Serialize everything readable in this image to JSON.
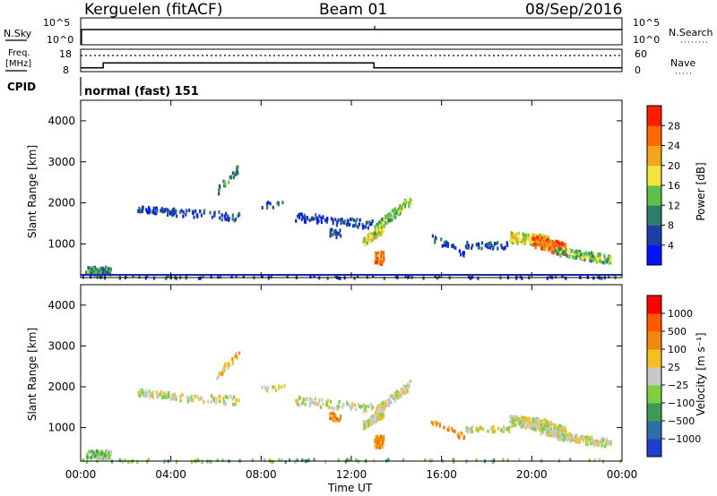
{
  "header": {
    "site": "Kerguelen (fitACF)",
    "beam": "Beam 01",
    "date": "08/Sep/2016"
  },
  "aux_panels": {
    "nsky": {
      "label": "N.Sky",
      "ticks_left": [
        "10^5",
        "10^0"
      ],
      "ticks_right": [
        "10^5",
        "10^0"
      ],
      "right_label": "N.Search"
    },
    "freq": {
      "label_line1": "Freq.",
      "label_line2": "[MHz]",
      "ticks_left": [
        "18",
        "8"
      ],
      "ticks_right": [
        "60",
        "0"
      ],
      "right_label": "Nave",
      "freq_series": [
        {
          "t0": 0.0,
          "t1": 1.0,
          "mhz": 9.7
        },
        {
          "t0": 1.0,
          "t1": 13.0,
          "mhz": 11.9
        },
        {
          "t0": 13.0,
          "t1": 24.0,
          "mhz": 9.7
        }
      ],
      "nave_level": 0.72
    },
    "cpid": {
      "label": "CPID",
      "text": "normal (fast) 151"
    }
  },
  "chart_data": [
    {
      "type": "heatmap",
      "name": "power",
      "ylabel": "Slant Range [km]",
      "yticks": [
        "1000",
        "2000",
        "3000",
        "4000"
      ],
      "ylim": [
        180,
        4500
      ],
      "xlim": [
        0,
        24
      ],
      "colorbar": {
        "label": "Power [dB]",
        "ticks": [
          "4",
          "8",
          "12",
          "16",
          "20",
          "24",
          "28"
        ],
        "colors": [
          "#0014ff",
          "#1e3fa8",
          "#2e7d6b",
          "#5fbf49",
          "#f2e63a",
          "#f4a51e",
          "#ff6a00",
          "#ff1e00"
        ]
      }
    },
    {
      "type": "heatmap",
      "name": "velocity",
      "ylabel": "Slant Range [km]",
      "yticks": [
        "1000",
        "2000",
        "3000",
        "4000"
      ],
      "ylim": [
        180,
        4500
      ],
      "xlim": [
        0,
        24
      ],
      "xlabel": "Time UT",
      "xticks": [
        "00:00",
        "04:00",
        "08:00",
        "12:00",
        "16:00",
        "20:00",
        "00:00"
      ],
      "colorbar": {
        "label": "Velocity  [m s⁻¹]",
        "ticks": [
          "1000",
          "500",
          "100",
          "25",
          "−25",
          "−100",
          "−500",
          "−1000"
        ],
        "colors": [
          "#1e3fd0",
          "#2e6fa8",
          "#3f9a55",
          "#7fd040",
          "#c8c8c8",
          "#f4c020",
          "#f08a10",
          "#ff5a00",
          "#ff0000"
        ]
      }
    }
  ]
}
